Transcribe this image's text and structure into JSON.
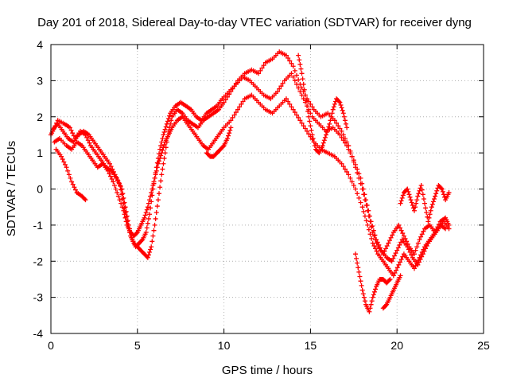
{
  "chart_data": {
    "type": "scatter",
    "title": "Day 201 of 2018, Sidereal Day-to-day VTEC variation (SDTVAR) for receiver dyng",
    "xlabel": "GPS time / hours",
    "ylabel": "SDTVAR / TECUs",
    "xlim": [
      0,
      25
    ],
    "ylim": [
      -4,
      4
    ],
    "xticks": [
      "0",
      "5",
      "10",
      "15",
      "20",
      "25"
    ],
    "yticks": [
      "-4",
      "-3",
      "-2",
      "-1",
      "0",
      "1",
      "2",
      "3",
      "4"
    ],
    "grid": true,
    "marker": "plus",
    "colors": {
      "series": "#ff0000",
      "grid": "#b0b0b0",
      "frame": "#000000"
    },
    "series": [
      {
        "x": [
          0,
          0.2,
          0.4,
          0.7,
          1.0,
          1.3,
          1.6,
          1.9,
          2.2,
          2.5,
          2.8,
          3.1,
          3.4,
          3.7,
          4.0,
          4.2,
          4.4,
          4.6,
          4.8,
          5.0,
          5.2,
          5.4,
          5.6,
          5.8,
          6.0,
          6.2,
          6.4,
          6.6,
          6.8,
          7.0,
          7.3,
          7.6,
          7.9,
          8.2,
          8.5,
          8.8,
          9.1,
          9.4,
          9.7,
          10.0,
          10.4,
          10.8,
          11.2,
          11.6,
          12.0,
          12.4,
          12.8,
          13.2,
          13.6,
          14.0,
          14.4,
          14.8,
          15.2,
          15.6,
          16.0,
          16.4,
          16.8,
          17.2,
          17.6,
          18.0,
          18.3,
          18.6,
          18.9,
          19.2,
          19.5,
          19.8,
          20.1,
          20.4,
          20.7,
          21.0,
          21.3,
          21.6,
          21.9,
          22.2,
          22.5,
          22.8,
          23.0
        ],
        "y": [
          1.5,
          1.7,
          1.8,
          1.6,
          1.4,
          1.3,
          1.5,
          1.6,
          1.5,
          1.3,
          1.1,
          0.9,
          0.7,
          0.4,
          0.1,
          -0.4,
          -0.9,
          -1.3,
          -1.5,
          -1.6,
          -1.7,
          -1.8,
          -1.9,
          -1.6,
          -1.0,
          -0.3,
          0.4,
          1.0,
          1.6,
          2.0,
          2.2,
          2.1,
          1.9,
          1.8,
          1.7,
          1.9,
          2.0,
          2.1,
          2.2,
          2.4,
          2.7,
          3.0,
          3.2,
          3.3,
          3.2,
          3.5,
          3.6,
          3.8,
          3.7,
          3.4,
          2.9,
          2.5,
          2.2,
          2.0,
          2.1,
          1.9,
          1.6,
          1.2,
          0.6,
          0.0,
          -0.6,
          -1.2,
          -1.6,
          -1.8,
          -1.5,
          -1.2,
          -1.0,
          -1.3,
          -1.6,
          -1.8,
          -1.4,
          -1.1,
          -1.0,
          -1.2,
          -0.9,
          -0.8,
          -1.0
        ]
      },
      {
        "x": [
          0.1,
          0.4,
          0.8,
          1.1,
          1.4,
          1.7,
          2.0,
          2.3,
          2.6,
          2.9,
          3.2,
          3.5,
          3.8,
          4.1,
          4.3,
          4.5,
          4.7,
          4.9,
          5.1,
          5.3,
          5.5,
          5.7,
          5.9,
          6.1,
          6.3,
          6.5,
          6.7,
          6.9,
          7.2,
          7.5,
          7.8,
          8.1,
          8.4,
          8.7,
          9.0,
          9.3,
          9.6,
          9.9,
          10.3,
          10.7,
          11.1,
          11.5,
          11.9,
          12.3,
          12.7,
          13.1,
          13.5,
          13.9,
          14.3,
          14.7,
          15.1,
          15.5,
          15.9,
          16.3,
          16.7,
          17.1,
          17.5,
          17.9,
          18.2,
          18.5,
          18.8,
          19.1,
          19.4,
          19.7,
          20.0,
          20.3,
          20.6,
          20.9,
          21.2,
          21.5,
          21.8,
          22.1,
          22.4,
          22.7,
          23.0
        ],
        "y": [
          1.6,
          1.9,
          1.8,
          1.7,
          1.4,
          1.6,
          1.5,
          1.2,
          1.0,
          0.8,
          0.6,
          0.5,
          0.3,
          0.0,
          -0.5,
          -1.0,
          -1.4,
          -1.6,
          -1.5,
          -1.4,
          -1.2,
          -0.7,
          0.0,
          0.6,
          1.1,
          1.5,
          1.8,
          2.1,
          2.3,
          2.4,
          2.3,
          2.2,
          2.0,
          1.9,
          2.1,
          2.2,
          2.3,
          2.5,
          2.7,
          2.9,
          3.1,
          3.0,
          2.8,
          2.6,
          2.5,
          2.7,
          3.0,
          3.2,
          2.8,
          2.4,
          2.0,
          1.8,
          1.6,
          1.7,
          1.5,
          1.2,
          0.8,
          0.3,
          -0.3,
          -0.9,
          -1.4,
          -1.7,
          -1.9,
          -2.0,
          -1.7,
          -1.4,
          -1.6,
          -1.9,
          -2.1,
          -1.8,
          -1.5,
          -1.3,
          -1.1,
          -0.9,
          -1.1
        ]
      },
      {
        "x": [
          0.2,
          0.5,
          0.9,
          1.2,
          1.5,
          1.8,
          2.1,
          2.4,
          2.7,
          3.0,
          3.3,
          3.6,
          3.9,
          4.2,
          4.4,
          4.6,
          4.8,
          5.0,
          5.2,
          5.4,
          5.6,
          5.8,
          6.0,
          6.2,
          6.4,
          6.6,
          6.8,
          7.0,
          7.3,
          7.6,
          7.9,
          8.2,
          8.5,
          8.8,
          9.1,
          9.4,
          9.7,
          10.0,
          10.4,
          10.8,
          11.2,
          11.6,
          12.0,
          12.4,
          12.8,
          13.2,
          13.6,
          14.0,
          14.4,
          14.8,
          15.2,
          15.6,
          16.0,
          16.4,
          16.8,
          17.2,
          17.6,
          18.0,
          18.3,
          18.6,
          18.9,
          19.2,
          19.5,
          19.8,
          20.1,
          20.4,
          20.7,
          21.0,
          21.3,
          21.6,
          21.9,
          22.2,
          22.5,
          22.8
        ],
        "y": [
          1.3,
          1.4,
          1.2,
          1.1,
          1.3,
          1.2,
          1.0,
          0.8,
          0.6,
          0.7,
          0.5,
          0.2,
          -0.2,
          -0.6,
          -1.0,
          -1.2,
          -1.3,
          -1.2,
          -1.0,
          -0.8,
          -0.5,
          -0.1,
          0.3,
          0.7,
          1.0,
          1.3,
          1.5,
          1.7,
          1.9,
          2.0,
          1.8,
          1.6,
          1.4,
          1.2,
          1.1,
          1.3,
          1.5,
          1.7,
          1.9,
          2.2,
          2.5,
          2.6,
          2.4,
          2.2,
          2.1,
          2.3,
          2.5,
          2.2,
          1.9,
          1.6,
          1.3,
          1.1,
          1.0,
          0.9,
          0.7,
          0.4,
          0.0,
          -0.5,
          -1.0,
          -1.5,
          -1.8,
          -2.0,
          -2.2,
          -2.4,
          -2.1,
          -1.8,
          -2.0,
          -2.2,
          -1.9,
          -1.6,
          -1.4,
          -1.2,
          -1.0,
          -1.1
        ]
      },
      {
        "x": [
          0.3,
          0.6,
          0.9,
          1.2,
          1.5,
          1.8,
          2.0
        ],
        "y": [
          1.1,
          0.9,
          0.6,
          0.2,
          -0.1,
          -0.2,
          -0.3
        ]
      },
      {
        "x": [
          9.0,
          9.2,
          9.4,
          9.6,
          9.8,
          10.0,
          10.2,
          10.4
        ],
        "y": [
          1.0,
          0.9,
          0.9,
          1.0,
          1.1,
          1.2,
          1.4,
          1.7
        ]
      },
      {
        "x": [
          17.6,
          17.8,
          18.0,
          18.2,
          18.4,
          18.6,
          18.8,
          19.0,
          19.2,
          19.4,
          19.6
        ],
        "y": [
          -1.8,
          -2.3,
          -2.8,
          -3.2,
          -3.4,
          -3.0,
          -2.7,
          -2.5,
          -2.5,
          -2.6,
          -2.5
        ]
      },
      {
        "x": [
          19.2,
          19.4,
          19.6,
          19.8,
          20.0,
          20.2
        ],
        "y": [
          -3.3,
          -3.2,
          -3.0,
          -2.8,
          -2.6,
          -2.4
        ]
      },
      {
        "x": [
          20.2,
          20.4,
          20.6,
          20.8,
          21.0,
          21.2,
          21.4,
          21.6,
          21.8,
          22.0,
          22.2,
          22.4,
          22.6,
          22.8,
          23.0
        ],
        "y": [
          -0.4,
          -0.1,
          0.0,
          -0.3,
          -0.6,
          -0.2,
          0.1,
          -0.4,
          -0.9,
          -0.5,
          -0.2,
          0.1,
          0.0,
          -0.3,
          -0.1
        ]
      },
      {
        "x": [
          14.3,
          14.5,
          14.7,
          14.9,
          15.1,
          15.3,
          15.5,
          15.7,
          15.9,
          16.1,
          16.3,
          16.5,
          16.7,
          16.9,
          17.1
        ],
        "y": [
          3.7,
          3.2,
          2.6,
          2.0,
          1.5,
          1.1,
          1.0,
          1.2,
          1.5,
          1.8,
          2.2,
          2.5,
          2.4,
          2.1,
          1.7
        ]
      }
    ]
  }
}
